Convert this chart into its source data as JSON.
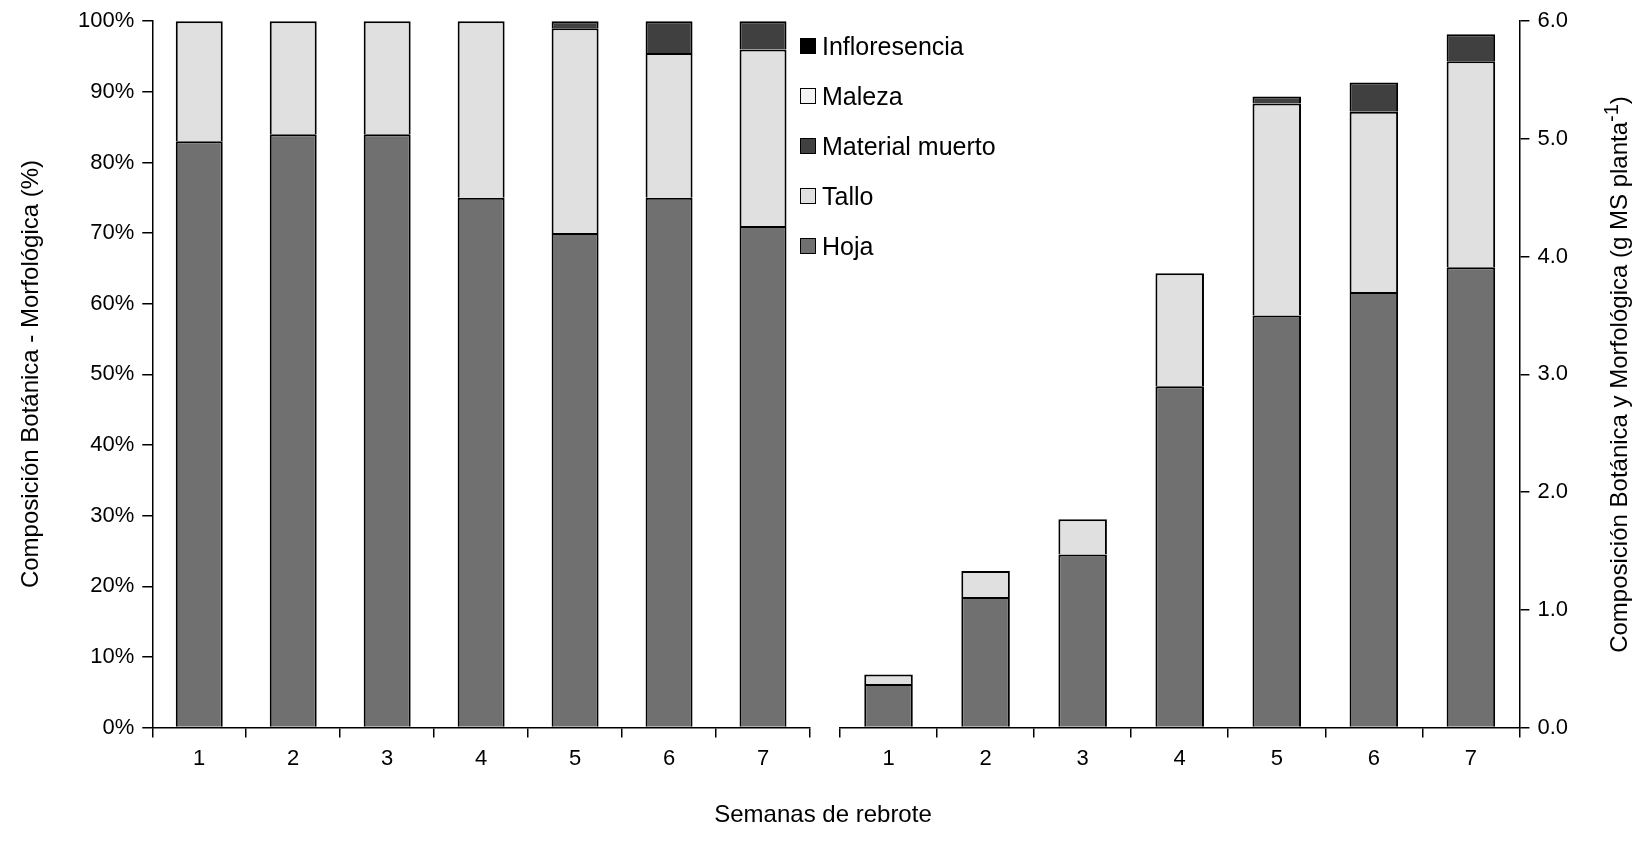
{
  "chart_data": [
    {
      "type": "bar",
      "stacked": true,
      "xlabel": "Semanas de rebrote",
      "ylabel": "Composición Botánica - Morfológica (%)",
      "categories": [
        "1",
        "2",
        "3",
        "4",
        "5",
        "6",
        "7"
      ],
      "series": [
        {
          "color": "#707070",
          "values": [
            83,
            84,
            84,
            75,
            70,
            75,
            71
          ]
        },
        {
          "color": "#e0e0e0",
          "values": [
            17,
            16,
            16,
            25,
            29,
            20.5,
            25
          ]
        },
        {
          "color": "#404040",
          "values": [
            0,
            0,
            0,
            0,
            1,
            4.5,
            4
          ]
        }
      ],
      "ylim": [
        0,
        100
      ],
      "yticks": [
        {
          "value": 0,
          "label": "0%"
        },
        {
          "value": 10,
          "label": "10%"
        },
        {
          "value": 20,
          "label": "20%"
        },
        {
          "value": 30,
          "label": "30%"
        },
        {
          "value": 40,
          "label": "40%"
        },
        {
          "value": 50,
          "label": "50%"
        },
        {
          "value": 60,
          "label": "60%"
        },
        {
          "value": 70,
          "label": "70%"
        },
        {
          "value": 80,
          "label": "80%"
        },
        {
          "value": 90,
          "label": "90%"
        },
        {
          "value": 100,
          "label": "100%"
        }
      ],
      "grid": false,
      "legend": false
    },
    {
      "type": "bar",
      "stacked": true,
      "y2label": "Composición Botánica y Morfológica (g MS planta$^{-1}$)",
      "categories": [
        "1",
        "2",
        "3",
        "4",
        "5",
        "6",
        "7"
      ],
      "series": [
        {
          "name": "Hoja",
          "color": "#707070",
          "axis": "y2",
          "values": [
            0.37,
            1.11,
            1.47,
            2.9,
            3.5,
            3.7,
            3.91
          ]
        },
        {
          "name": "Tallo",
          "color": "#e0e0e0",
          "axis": "y2",
          "values": [
            0.08,
            0.22,
            0.3,
            0.96,
            1.8,
            1.53,
            1.75
          ]
        },
        {
          "name": "Material muerto",
          "color": "#404040",
          "axis": "y2",
          "values": [
            0,
            0,
            0,
            0,
            0.06,
            0.25,
            0.23
          ]
        },
        {
          "name": "Maleza",
          "color": "#f4f4f4",
          "axis": "y2",
          "values": [
            0,
            0,
            0,
            0,
            0,
            0,
            0
          ]
        },
        {
          "name": "Infloresencia",
          "color": "#000000",
          "axis": "y2",
          "values": [
            0,
            0,
            0,
            0,
            0,
            0,
            0
          ]
        }
      ],
      "y2lim": [
        0,
        6
      ],
      "y2ticks": [
        {
          "value": 0,
          "label": "0.0"
        },
        {
          "value": 1,
          "label": "1.0"
        },
        {
          "value": 2,
          "label": "2.0"
        },
        {
          "value": 3,
          "label": "3.0"
        },
        {
          "value": 4,
          "label": "4.0"
        },
        {
          "value": 5,
          "label": "5.0"
        },
        {
          "value": 6,
          "label": "6.0"
        }
      ],
      "grid": false,
      "legend": "top left"
    }
  ]
}
